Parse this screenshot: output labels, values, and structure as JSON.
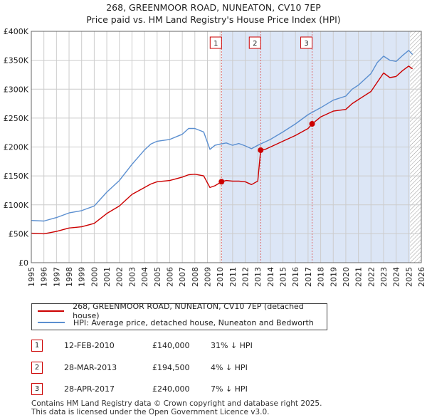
{
  "header": {
    "title": "268, GREENMOOR ROAD, NUNEATON, CV10 7EP",
    "subtitle": "Price paid vs. HM Land Registry's House Price Index (HPI)"
  },
  "colors": {
    "property": "#cc0000",
    "hpi": "#5b8fd0",
    "shade": "#dce6f6",
    "marker_line": "#dd6666"
  },
  "chart_data": {
    "type": "line",
    "title": "268, GREENMOOR ROAD, NUNEATON, CV10 7EP",
    "subtitle": "Price paid vs. HM Land Registry's House Price Index (HPI)",
    "xlim": [
      1995,
      2026
    ],
    "ylim": [
      0,
      400000
    ],
    "x_ticks": [
      "1995",
      "1996",
      "1997",
      "1998",
      "1999",
      "2000",
      "2001",
      "2002",
      "2003",
      "2004",
      "2005",
      "2006",
      "2007",
      "2008",
      "2009",
      "2010",
      "2011",
      "2012",
      "2013",
      "2014",
      "2015",
      "2016",
      "2017",
      "2018",
      "2019",
      "2020",
      "2021",
      "2022",
      "2023",
      "2024",
      "2025",
      "2026"
    ],
    "y_ticks": [
      {
        "value": 0,
        "label": "£0"
      },
      {
        "value": 50000,
        "label": "£50K"
      },
      {
        "value": 100000,
        "label": "£100K"
      },
      {
        "value": 150000,
        "label": "£150K"
      },
      {
        "value": 200000,
        "label": "£200K"
      },
      {
        "value": 250000,
        "label": "£250K"
      },
      {
        "value": 300000,
        "label": "£300K"
      },
      {
        "value": 350000,
        "label": "£350K"
      },
      {
        "value": 400000,
        "label": "£400K"
      }
    ],
    "grid": true,
    "shaded_from": 2010.12,
    "hatched_from": 2025.1,
    "series": [
      {
        "name": "268, GREENMOOR ROAD, NUNEATON, CV10 7EP (detached house)",
        "x": [
          1995.0,
          1996.0,
          1997.0,
          1998.0,
          1999.0,
          2000.0,
          2001.0,
          2002.0,
          2003.0,
          2004.0,
          2004.5,
          2005.0,
          2006.0,
          2007.0,
          2007.5,
          2008.0,
          2008.7,
          2009.2,
          2009.6,
          2010.12,
          2010.5,
          2011.0,
          2011.5,
          2012.0,
          2012.5,
          2013.0,
          2013.23,
          2013.6,
          2014.0,
          2015.0,
          2016.0,
          2017.0,
          2017.32,
          2018.0,
          2019.0,
          2020.0,
          2020.5,
          2021.0,
          2022.0,
          2022.5,
          2023.0,
          2023.5,
          2024.0,
          2024.5,
          2025.0,
          2025.3
        ],
        "values": [
          51000,
          50000,
          54000,
          60000,
          62000,
          68000,
          85000,
          98000,
          118000,
          130000,
          136000,
          140000,
          142000,
          148000,
          152000,
          153000,
          150000,
          130000,
          133000,
          140000,
          142000,
          141000,
          141000,
          140000,
          135000,
          141000,
          194500,
          196000,
          200000,
          210000,
          220000,
          232000,
          240000,
          252000,
          262000,
          265000,
          275000,
          282000,
          296000,
          312000,
          328000,
          320000,
          322000,
          332000,
          340000,
          335000
        ]
      },
      {
        "name": "HPI: Average price, detached house, Nuneaton and Bedworth",
        "x": [
          1995.0,
          1996.0,
          1997.0,
          1998.0,
          1999.0,
          2000.0,
          2001.0,
          2002.0,
          2003.0,
          2004.0,
          2004.5,
          2005.0,
          2006.0,
          2007.0,
          2007.5,
          2008.0,
          2008.7,
          2009.2,
          2009.6,
          2010.0,
          2010.5,
          2011.0,
          2011.5,
          2012.0,
          2012.5,
          2013.0,
          2013.5,
          2014.0,
          2015.0,
          2016.0,
          2017.0,
          2018.0,
          2019.0,
          2020.0,
          2020.5,
          2021.0,
          2022.0,
          2022.5,
          2023.0,
          2023.5,
          2024.0,
          2024.5,
          2025.0,
          2025.3
        ],
        "values": [
          73000,
          72000,
          78000,
          86000,
          90000,
          98000,
          122000,
          142000,
          170000,
          195000,
          205000,
          210000,
          213000,
          222000,
          232000,
          232000,
          226000,
          196000,
          203000,
          205000,
          207000,
          203000,
          206000,
          202000,
          197000,
          203000,
          208000,
          213000,
          226000,
          240000,
          256000,
          268000,
          281000,
          288000,
          300000,
          307000,
          327000,
          346000,
          357000,
          350000,
          348000,
          358000,
          367000,
          360000
        ]
      }
    ],
    "sales": [
      {
        "num": "1",
        "x": 2010.12,
        "value": 140000,
        "date": "12-FEB-2010",
        "price": "£140,000",
        "hpi": "31% ↓ HPI"
      },
      {
        "num": "2",
        "x": 2013.23,
        "value": 194500,
        "date": "28-MAR-2013",
        "price": "£194,500",
        "hpi": "4% ↓ HPI"
      },
      {
        "num": "3",
        "x": 2017.32,
        "value": 240000,
        "date": "28-APR-2017",
        "price": "£240,000",
        "hpi": "7% ↓ HPI"
      }
    ]
  },
  "legend": {
    "property_label": "268, GREENMOOR ROAD, NUNEATON, CV10 7EP (detached house)",
    "hpi_label": "HPI: Average price, detached house, Nuneaton and Bedworth"
  },
  "footer": {
    "line1": "Contains HM Land Registry data © Crown copyright and database right 2025.",
    "line2": "This data is licensed under the Open Government Licence v3.0."
  }
}
